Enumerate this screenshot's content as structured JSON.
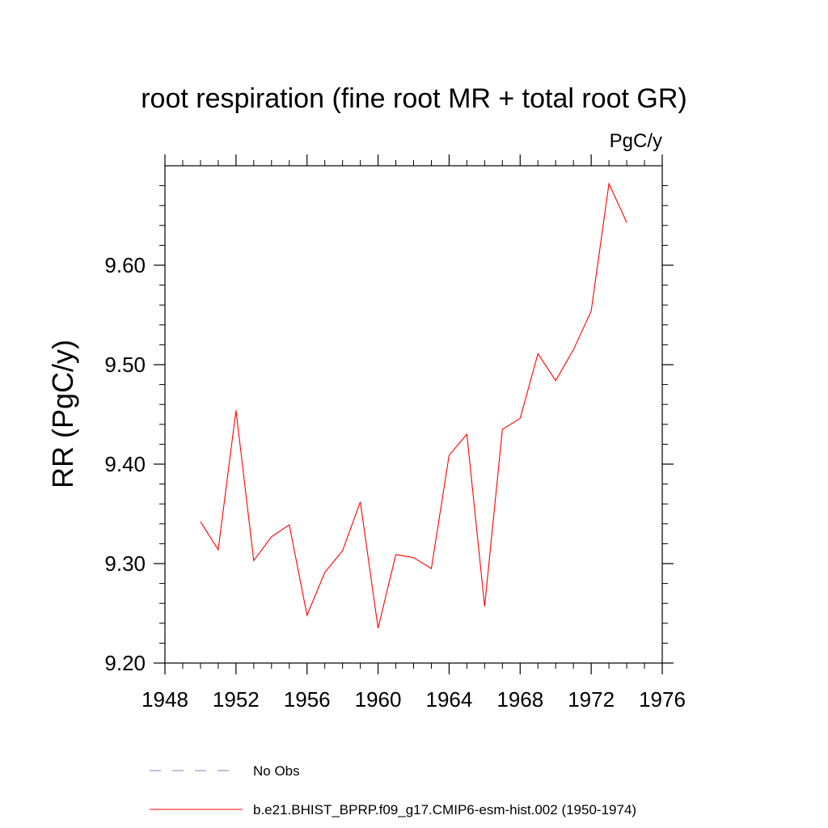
{
  "chart_data": {
    "type": "line",
    "title": "root respiration (fine root MR + total root GR)",
    "units_label": "PgC/y",
    "ylabel": "RR  (PgC/y)",
    "xlabel": "",
    "xlim": [
      1948,
      1976
    ],
    "ylim": [
      9.2,
      9.7
    ],
    "x_ticks": [
      1948,
      1952,
      1956,
      1960,
      1964,
      1968,
      1972,
      1976
    ],
    "x_tick_labels": [
      "1948",
      "1952",
      "1956",
      "1960",
      "1964",
      "1968",
      "1972",
      "1976"
    ],
    "y_ticks": [
      9.2,
      9.3,
      9.4,
      9.5,
      9.6
    ],
    "y_tick_labels": [
      "9.20",
      "9.30",
      "9.40",
      "9.50",
      "9.60"
    ],
    "series": [
      {
        "name": "b.e21.BHIST_BPRP.f09_g17.CMIP6-esm-hist.002 (1950-1974)",
        "color": "#ff0000",
        "x": [
          1950,
          1951,
          1952,
          1953,
          1954,
          1955,
          1956,
          1957,
          1958,
          1959,
          1960,
          1961,
          1962,
          1963,
          1964,
          1965,
          1966,
          1967,
          1968,
          1969,
          1970,
          1971,
          1972,
          1973,
          1974
        ],
        "values": [
          9.342,
          9.314,
          9.454,
          9.303,
          9.327,
          9.339,
          9.248,
          9.291,
          9.313,
          9.362,
          9.235,
          9.309,
          9.306,
          9.295,
          9.409,
          9.43,
          9.257,
          9.435,
          9.446,
          9.511,
          9.484,
          9.515,
          9.554,
          9.682,
          9.643
        ]
      }
    ],
    "legend": [
      {
        "label": "No Obs",
        "color": "#8a7fbf",
        "style": "dashed"
      },
      {
        "label": "b.e21.BHIST_BPRP.f09_g17.CMIP6-esm-hist.002 (1950-1974)",
        "color": "#ff0000",
        "style": "solid"
      }
    ],
    "legend_position": "bottom"
  }
}
